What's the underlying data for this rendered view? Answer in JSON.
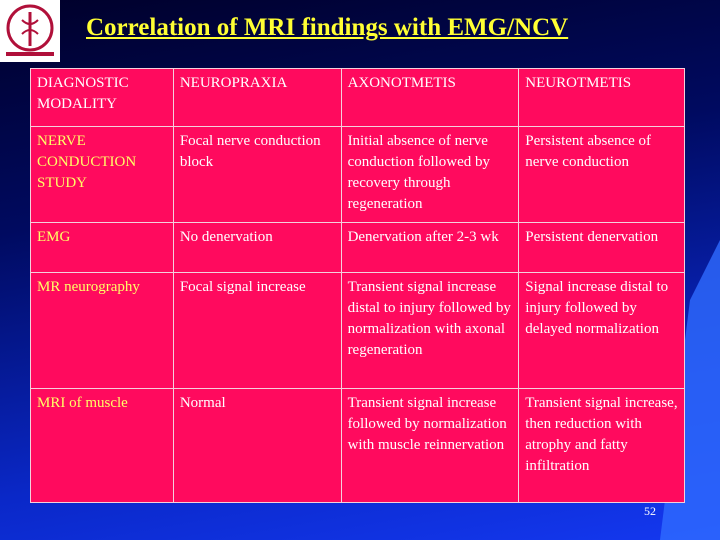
{
  "title": "Correlation of MRI findings with EMG/NCV",
  "table": {
    "header": [
      "DIAGNOSTIC MODALITY",
      "NEUROPRAXIA",
      "AXONOTMETIS",
      "NEUROTMETIS"
    ],
    "rows": [
      [
        "NERVE CONDUCTION STUDY",
        "Focal nerve conduction block",
        "Initial absence of nerve conduction followed by recovery through regeneration",
        "Persistent absence of nerve conduction"
      ],
      [
        "EMG",
        "No denervation",
        "Denervation after 2-3 wk",
        "Persistent denervation"
      ],
      [
        "MR neurography",
        "Focal signal increase",
        "Transient signal increase distal to injury followed by normalization with axonal regeneration",
        "Signal increase distal to injury followed by delayed normalization"
      ],
      [
        "MRI of muscle",
        "Normal",
        "Transient signal increase followed by normalization with muscle reinnervation",
        "Transient signal increase, then reduction with atrophy and fatty infiltration"
      ]
    ]
  },
  "page_number": "52"
}
